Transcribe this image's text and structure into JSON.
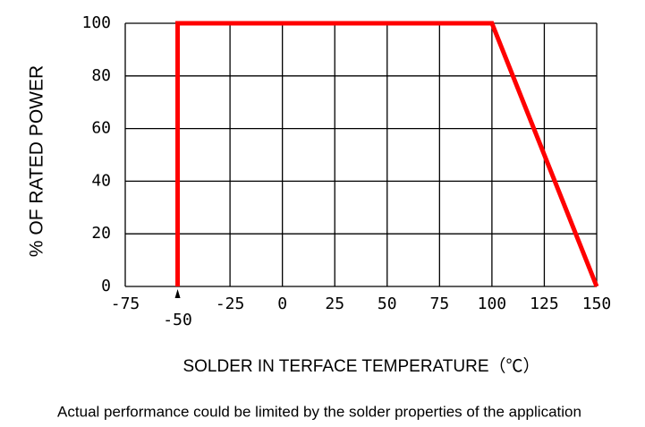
{
  "chart_data": {
    "type": "line",
    "xlabel": "SOLDER IN TERFACE TEMPERATURE（℃）",
    "ylabel": "% OF RATED POWER",
    "note": "Actual performance could be limited by the solder properties of the application",
    "x": [
      -50,
      -50,
      100,
      150
    ],
    "series": [
      {
        "color": "#ff0000",
        "values": [
          0,
          100,
          100,
          0
        ]
      }
    ],
    "xlim": [
      -75,
      150
    ],
    "xticks": [
      -75,
      -50,
      -25,
      0,
      25,
      50,
      75,
      100,
      125,
      150
    ],
    "ylim": [
      0,
      100
    ],
    "yticks": [
      0,
      20,
      40,
      60,
      80,
      100
    ],
    "grid": true
  }
}
